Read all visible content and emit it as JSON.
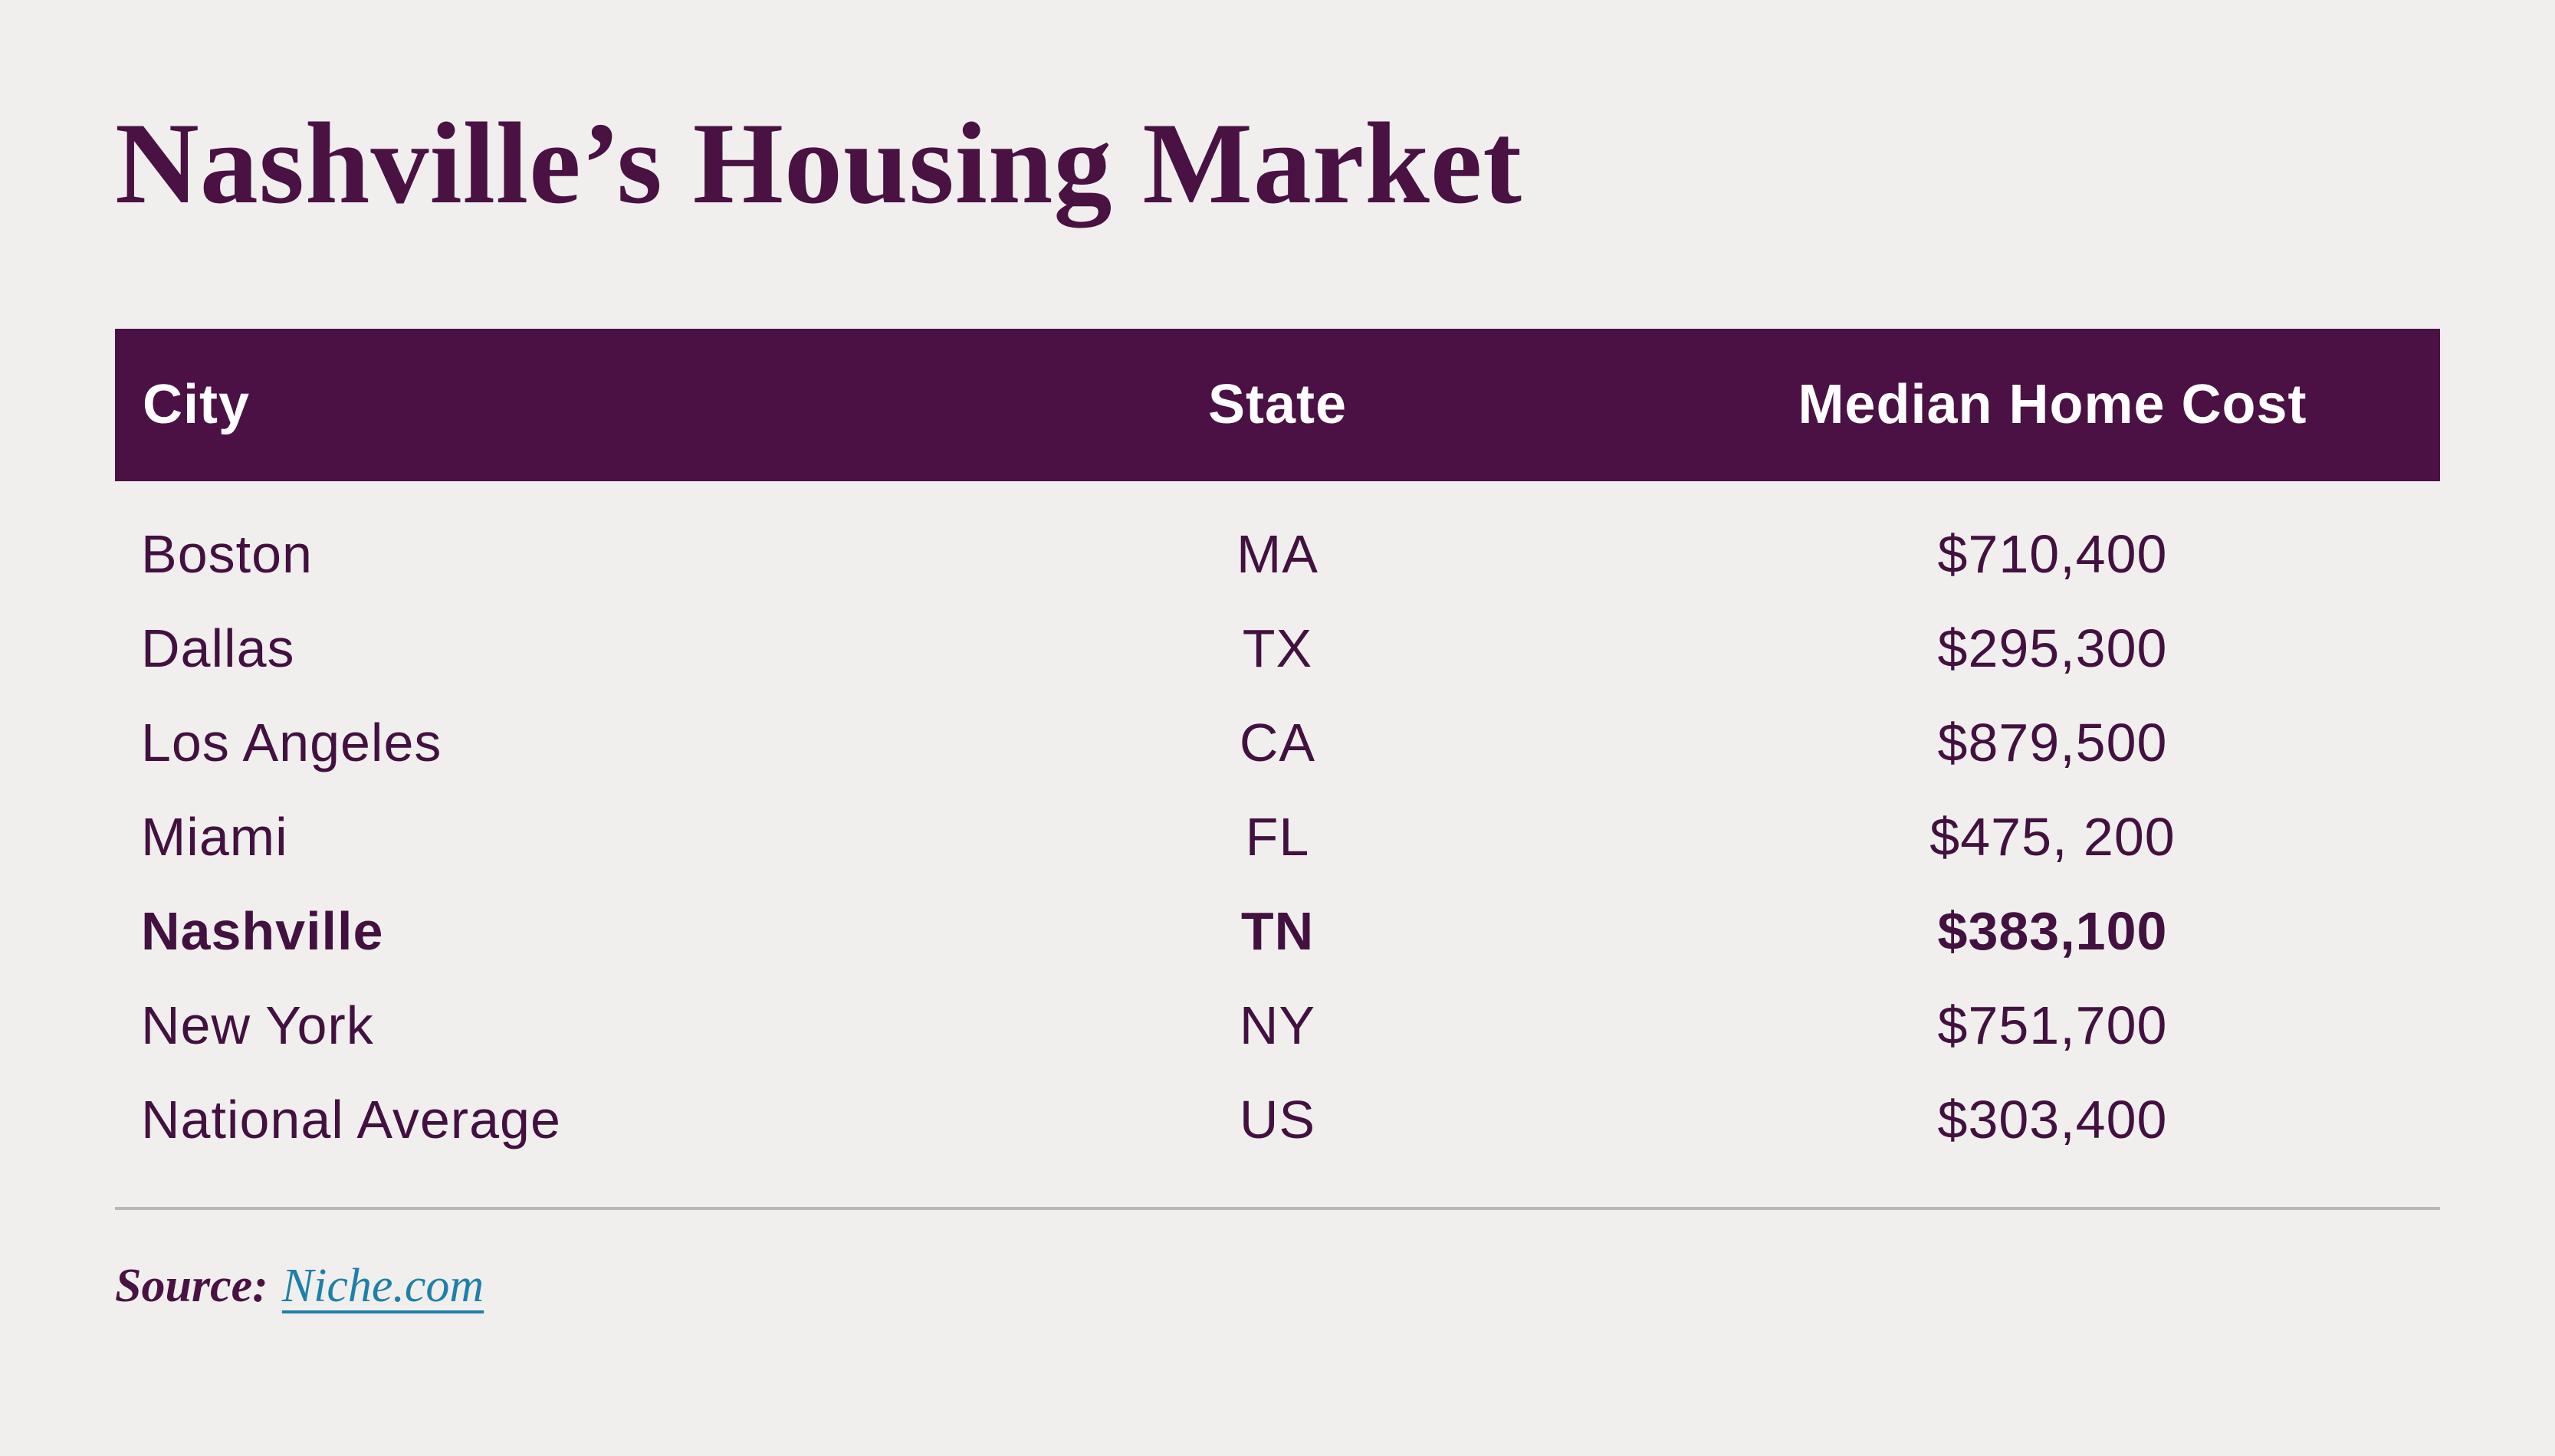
{
  "title": "Nashville’s Housing Market",
  "colors": {
    "background": "#f0efee",
    "header_bg": "#4b1145",
    "header_text": "#ffffff",
    "title_text": "#4a1143",
    "row_text": "#431140",
    "divider": "#b9b7b7",
    "link": "#1f80a7"
  },
  "table": {
    "columns": [
      "City",
      "State",
      "Median Home Cost"
    ],
    "rows": [
      {
        "city": "Boston",
        "state": "MA",
        "cost": "$710,400"
      },
      {
        "city": "Dallas",
        "state": "TX",
        "cost": "$295,300"
      },
      {
        "city": "Los Angeles",
        "state": "CA",
        "cost": "$879,500"
      },
      {
        "city": "Miami",
        "state": "FL",
        "cost": "$475, 200"
      },
      {
        "city": "Nashville",
        "state": "TN",
        "cost": "$383,100"
      },
      {
        "city": "New York",
        "state": "NY",
        "cost": "$751,700"
      },
      {
        "city": "National Average",
        "state": "US",
        "cost": "$303,400"
      }
    ],
    "highlighted_row": "Nashville"
  },
  "source": {
    "label": "Source:",
    "link_text": "Niche.com"
  },
  "chart_data": {
    "type": "table",
    "title": "Nashville’s Housing Market",
    "columns": [
      "City",
      "State",
      "Median Home Cost"
    ],
    "rows": [
      [
        "Boston",
        "MA",
        "$710,400"
      ],
      [
        "Dallas",
        "TX",
        "$295,300"
      ],
      [
        "Los Angeles",
        "CA",
        "$879,500"
      ],
      [
        "Miami",
        "FL",
        "$475, 200"
      ],
      [
        "Nashville",
        "TN",
        "$383,100"
      ],
      [
        "New York",
        "NY",
        "$751,700"
      ],
      [
        "National Average",
        "US",
        "$303,400"
      ]
    ],
    "values_numeric": [
      710400,
      295300,
      879500,
      475200,
      383100,
      751700,
      303400
    ],
    "highlighted_row": "Nashville",
    "source": "Niche.com"
  }
}
